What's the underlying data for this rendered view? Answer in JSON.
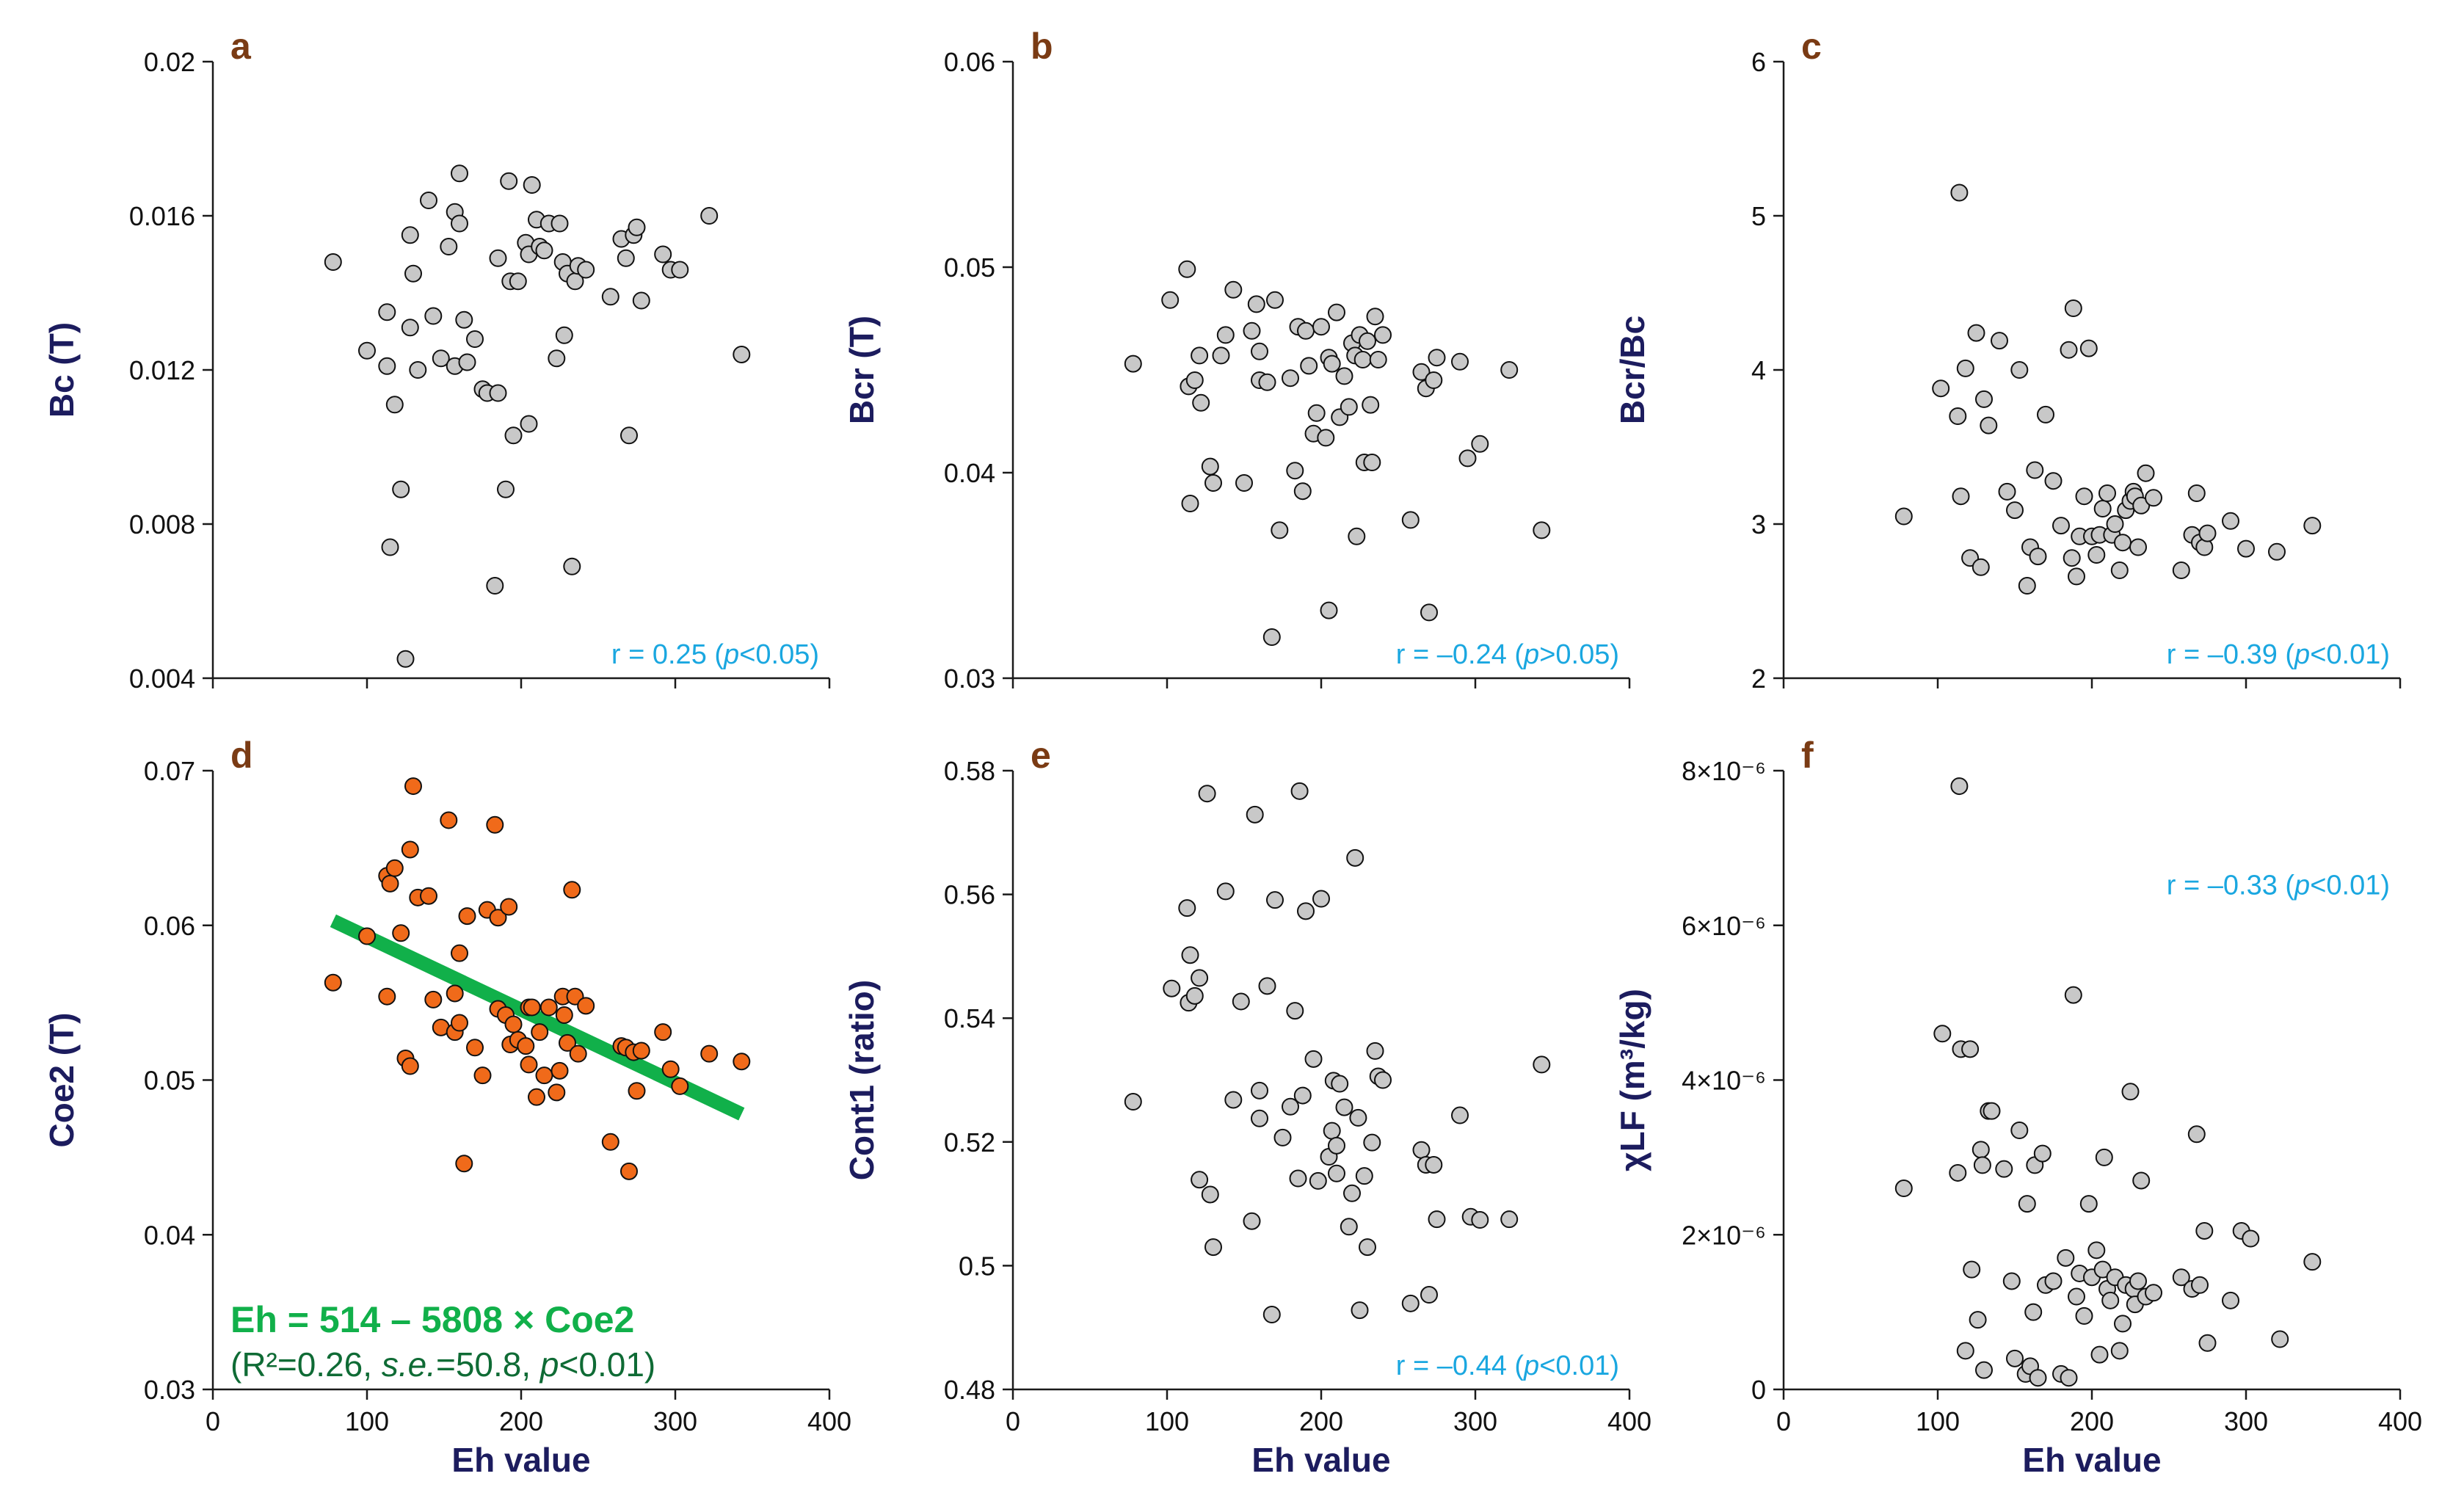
{
  "colors": {
    "axis": "#1a1a1a",
    "axis_label": "#1c1c5e",
    "panel_letter": "#7a3b14",
    "annotation": "#1aa7e0",
    "fit_line": "#11b04a",
    "gray_point": "#c8c8c8",
    "orange_point": "#f06a1a"
  },
  "chart_data": [
    {
      "type": "scatter",
      "panel": "a",
      "xlabel": "",
      "ylabel": "Bc (T)",
      "xlim": [
        0,
        400
      ],
      "ylim": [
        0.004,
        0.02
      ],
      "xticks": [
        0,
        100,
        200,
        300,
        400
      ],
      "xtick_labels": [
        "",
        "",
        "",
        "",
        ""
      ],
      "yticks": [
        0.004,
        0.008,
        0.012,
        0.016,
        0.02
      ],
      "ytick_labels": [
        "0.004",
        "0.008",
        "0.012",
        "0.016",
        "0.02"
      ],
      "annotation": "r = 0.25 (p<0.05)",
      "point_style": "gray",
      "x": [
        78,
        100,
        113,
        113,
        115,
        118,
        122,
        125,
        128,
        128,
        130,
        133,
        140,
        143,
        148,
        153,
        157,
        157,
        160,
        160,
        163,
        165,
        170,
        175,
        178,
        183,
        185,
        185,
        190,
        192,
        193,
        195,
        198,
        203,
        205,
        205,
        207,
        210,
        212,
        215,
        218,
        223,
        225,
        227,
        228,
        230,
        233,
        235,
        237,
        242,
        258,
        265,
        268,
        270,
        273,
        275,
        278,
        292,
        297,
        303,
        322,
        343
      ],
      "y": [
        0.0148,
        0.0125,
        0.0135,
        0.0121,
        0.0074,
        0.0111,
        0.0089,
        0.0045,
        0.0155,
        0.0131,
        0.0145,
        0.012,
        0.0164,
        0.0134,
        0.0123,
        0.0152,
        0.0121,
        0.0161,
        0.0171,
        0.0158,
        0.0133,
        0.0122,
        0.0128,
        0.0115,
        0.0114,
        0.0064,
        0.0149,
        0.0114,
        0.0089,
        0.0169,
        0.0143,
        0.0103,
        0.0143,
        0.0153,
        0.015,
        0.0106,
        0.0168,
        0.0159,
        0.0152,
        0.0151,
        0.0158,
        0.0123,
        0.0158,
        0.0148,
        0.0129,
        0.0145,
        0.0069,
        0.0143,
        0.0147,
        0.0146,
        0.0139,
        0.0154,
        0.0149,
        0.0103,
        0.0155,
        0.0157,
        0.0138,
        0.015,
        0.0146,
        0.0146,
        0.016,
        0.0124
      ]
    },
    {
      "type": "scatter",
      "panel": "b",
      "xlabel": "",
      "ylabel": "Bcr (T)",
      "xlim": [
        0,
        400
      ],
      "ylim": [
        0.03,
        0.06
      ],
      "xticks": [
        0,
        100,
        200,
        300,
        400
      ],
      "xtick_labels": [
        "",
        "",
        "",
        "",
        ""
      ],
      "yticks": [
        0.03,
        0.04,
        0.05,
        0.06
      ],
      "ytick_labels": [
        "0.03",
        "0.04",
        "0.05",
        "0.06"
      ],
      "annotation": "r = –0.24 (p>0.05)",
      "point_style": "gray",
      "x": [
        78,
        102,
        113,
        114,
        115,
        118,
        121,
        122,
        128,
        130,
        135,
        138,
        143,
        150,
        155,
        158,
        160,
        160,
        165,
        168,
        170,
        173,
        180,
        183,
        185,
        188,
        190,
        192,
        195,
        197,
        200,
        203,
        205,
        205,
        207,
        210,
        212,
        215,
        218,
        220,
        222,
        223,
        225,
        227,
        228,
        230,
        232,
        233,
        235,
        237,
        240,
        258,
        265,
        268,
        270,
        273,
        275,
        290,
        295,
        303,
        322,
        343
      ],
      "y": [
        0.0453,
        0.0484,
        0.0499,
        0.0442,
        0.0385,
        0.0445,
        0.0457,
        0.0434,
        0.0403,
        0.0395,
        0.0457,
        0.0467,
        0.0489,
        0.0395,
        0.0469,
        0.0482,
        0.0445,
        0.0459,
        0.0444,
        0.032,
        0.0484,
        0.0372,
        0.0446,
        0.0401,
        0.0471,
        0.0391,
        0.0469,
        0.0452,
        0.0419,
        0.0429,
        0.0471,
        0.0417,
        0.0456,
        0.0333,
        0.0453,
        0.0478,
        0.0427,
        0.0447,
        0.0432,
        0.0463,
        0.0457,
        0.0369,
        0.0467,
        0.0455,
        0.0405,
        0.0464,
        0.0433,
        0.0405,
        0.0476,
        0.0455,
        0.0467,
        0.0377,
        0.0449,
        0.0441,
        0.0332,
        0.0445,
        0.0456,
        0.0454,
        0.0407,
        0.0414,
        0.045,
        0.0372
      ]
    },
    {
      "type": "scatter",
      "panel": "c",
      "xlabel": "",
      "ylabel": "Bcr/Bc",
      "xlim": [
        0,
        400
      ],
      "ylim": [
        2,
        6
      ],
      "xticks": [
        0,
        100,
        200,
        300,
        400
      ],
      "xtick_labels": [
        "",
        "",
        "",
        "",
        ""
      ],
      "yticks": [
        2,
        3,
        4,
        5,
        6
      ],
      "ytick_labels": [
        "2",
        "3",
        "4",
        "5",
        "6"
      ],
      "annotation": "r = –0.39 (p<0.01)",
      "point_style": "gray",
      "x": [
        78,
        102,
        113,
        114,
        115,
        118,
        121,
        125,
        128,
        130,
        133,
        140,
        145,
        150,
        153,
        158,
        160,
        163,
        165,
        170,
        175,
        180,
        185,
        187,
        188,
        190,
        192,
        195,
        198,
        200,
        203,
        205,
        207,
        210,
        213,
        215,
        218,
        220,
        222,
        225,
        227,
        228,
        230,
        232,
        235,
        240,
        258,
        265,
        268,
        270,
        273,
        275,
        290,
        300,
        320,
        343
      ],
      "y": [
        3.05,
        3.88,
        3.7,
        5.15,
        3.18,
        4.01,
        2.78,
        4.24,
        2.72,
        3.81,
        3.64,
        4.19,
        3.21,
        3.09,
        4,
        2.6,
        2.85,
        3.35,
        2.79,
        3.71,
        3.28,
        2.99,
        4.13,
        2.78,
        4.4,
        2.66,
        2.92,
        3.18,
        4.14,
        2.92,
        2.8,
        2.93,
        3.1,
        3.2,
        2.93,
        3.0,
        2.7,
        2.88,
        3.09,
        3.15,
        3.21,
        3.18,
        2.85,
        3.12,
        3.33,
        3.17,
        2.7,
        2.93,
        3.2,
        2.88,
        2.85,
        2.94,
        3.02,
        2.84,
        2.82,
        2.99
      ]
    },
    {
      "type": "scatter",
      "panel": "d",
      "xlabel": "Eh value",
      "ylabel": "Coe2 (T)",
      "xlim": [
        0,
        400
      ],
      "ylim": [
        0.03,
        0.07
      ],
      "xticks": [
        0,
        100,
        200,
        300,
        400
      ],
      "xtick_labels": [
        "0",
        "100",
        "200",
        "300",
        "400"
      ],
      "yticks": [
        0.03,
        0.04,
        0.05,
        0.06,
        0.07
      ],
      "ytick_labels": [
        "0.03",
        "0.04",
        "0.05",
        "0.06",
        "0.07"
      ],
      "annotation": "",
      "point_style": "orange",
      "fit_line": {
        "x": [
          78,
          343
        ],
        "y": [
          0.0603,
          0.0478
        ]
      },
      "equation": "Eh = 514 – 5808 × Coe2",
      "stats": "(R²=0.26, s.e.=50.8, p<0.01)",
      "x": [
        78,
        100,
        113,
        113,
        115,
        118,
        122,
        125,
        128,
        128,
        130,
        133,
        140,
        143,
        148,
        153,
        157,
        157,
        160,
        160,
        163,
        165,
        170,
        175,
        178,
        183,
        185,
        185,
        190,
        192,
        193,
        195,
        198,
        203,
        205,
        205,
        207,
        210,
        212,
        215,
        218,
        223,
        225,
        227,
        228,
        230,
        233,
        235,
        237,
        242,
        258,
        265,
        268,
        270,
        273,
        275,
        278,
        292,
        297,
        303,
        322,
        343
      ],
      "y": [
        0.0563,
        0.0593,
        0.0632,
        0.0554,
        0.0627,
        0.0637,
        0.0595,
        0.0514,
        0.0649,
        0.0509,
        0.069,
        0.0618,
        0.0619,
        0.0552,
        0.0534,
        0.0668,
        0.0531,
        0.0556,
        0.0582,
        0.0537,
        0.0446,
        0.0606,
        0.0521,
        0.0503,
        0.061,
        0.0665,
        0.0605,
        0.0546,
        0.0542,
        0.0612,
        0.0523,
        0.0536,
        0.0526,
        0.0522,
        0.051,
        0.0547,
        0.0547,
        0.0489,
        0.0531,
        0.0503,
        0.0547,
        0.0492,
        0.0506,
        0.0554,
        0.0542,
        0.0524,
        0.0623,
        0.0554,
        0.0517,
        0.0548,
        0.046,
        0.0522,
        0.0521,
        0.0441,
        0.0518,
        0.0493,
        0.0519,
        0.0531,
        0.0507,
        0.0496,
        0.0517,
        0.0512
      ]
    },
    {
      "type": "scatter",
      "panel": "e",
      "xlabel": "Eh value",
      "ylabel": "Cont1 (ratio)",
      "xlim": [
        0,
        400
      ],
      "ylim": [
        0.48,
        0.58
      ],
      "xticks": [
        0,
        100,
        200,
        300,
        400
      ],
      "xtick_labels": [
        "0",
        "100",
        "200",
        "300",
        "400"
      ],
      "yticks": [
        0.48,
        0.5,
        0.52,
        0.54,
        0.56,
        0.58
      ],
      "ytick_labels": [
        "0.48",
        "0.5",
        "0.52",
        "0.54",
        "0.56",
        "0.58"
      ],
      "annotation": "r = –0.44 (p<0.01)",
      "point_style": "gray",
      "x": [
        78,
        103,
        113,
        114,
        115,
        118,
        121,
        121,
        126,
        128,
        130,
        138,
        143,
        148,
        155,
        157,
        160,
        160,
        165,
        168,
        170,
        175,
        180,
        183,
        185,
        186,
        188,
        190,
        195,
        198,
        200,
        205,
        207,
        208,
        210,
        210,
        212,
        215,
        218,
        220,
        222,
        224,
        225,
        228,
        230,
        233,
        235,
        237,
        240,
        258,
        265,
        268,
        270,
        273,
        275,
        290,
        297,
        303,
        322,
        343
      ],
      "y": [
        0.5265,
        0.5448,
        0.5578,
        0.5425,
        0.5502,
        0.5436,
        0.5465,
        0.5139,
        0.5763,
        0.5115,
        0.503,
        0.5605,
        0.5268,
        0.5427,
        0.5072,
        0.5729,
        0.5283,
        0.5238,
        0.5452,
        0.4921,
        0.5591,
        0.5207,
        0.5257,
        0.5412,
        0.5141,
        0.5767,
        0.5275,
        0.5573,
        0.5334,
        0.5137,
        0.5593,
        0.5176,
        0.5218,
        0.5299,
        0.5194,
        0.5149,
        0.5294,
        0.5256,
        0.5063,
        0.5117,
        0.5659,
        0.5239,
        0.4928,
        0.5145,
        0.503,
        0.5199,
        0.5347,
        0.5306,
        0.53,
        0.4939,
        0.5187,
        0.5163,
        0.4953,
        0.5163,
        0.5075,
        0.5243,
        0.5079,
        0.5074,
        0.5075,
        0.5325
      ]
    },
    {
      "type": "scatter",
      "panel": "f",
      "xlabel": "Eh value",
      "ylabel": "χLF (m³/kg)",
      "xlim": [
        0,
        400
      ],
      "ylim": [
        0,
        8e-06
      ],
      "xticks": [
        0,
        100,
        200,
        300,
        400
      ],
      "xtick_labels": [
        "0",
        "100",
        "200",
        "300",
        "400"
      ],
      "yticks": [
        0,
        2e-06,
        4e-06,
        6e-06,
        8e-06
      ],
      "ytick_labels": [
        "0",
        "2×10⁻⁶",
        "4×10⁻⁶",
        "6×10⁻⁶",
        "8×10⁻⁶"
      ],
      "annotation": "r = –0.33 (p<0.01)",
      "point_style": "gray",
      "x": [
        78,
        103,
        113,
        114,
        115,
        118,
        121,
        122,
        126,
        128,
        129,
        130,
        133,
        135,
        143,
        148,
        150,
        153,
        157,
        158,
        160,
        162,
        163,
        165,
        168,
        170,
        175,
        180,
        183,
        185,
        188,
        190,
        192,
        195,
        198,
        200,
        203,
        205,
        207,
        208,
        210,
        212,
        215,
        218,
        220,
        222,
        225,
        227,
        228,
        230,
        232,
        235,
        240,
        258,
        265,
        268,
        270,
        273,
        275,
        290,
        297,
        303,
        322,
        343
      ],
      "y": [
        2.6e-06,
        4.6e-06,
        2.8e-06,
        7.8e-06,
        4.4e-06,
        5e-07,
        4.4e-06,
        1.55e-06,
        9e-07,
        3.1e-06,
        2.9e-06,
        2.5e-07,
        3.6e-06,
        3.6e-06,
        2.85e-06,
        1.4e-06,
        4e-07,
        3.35e-06,
        2e-07,
        2.4e-06,
        3e-07,
        1e-06,
        2.9e-06,
        1.5e-07,
        3.05e-06,
        1.35e-06,
        1.4e-06,
        2e-07,
        1.7e-06,
        1.5e-07,
        5.1e-06,
        1.2e-06,
        1.5e-06,
        9.5e-07,
        2.4e-06,
        1.45e-06,
        1.8e-06,
        4.5e-07,
        1.55e-06,
        3e-06,
        1.3e-06,
        1.15e-06,
        1.45e-06,
        5e-07,
        8.5e-07,
        1.35e-06,
        3.85e-06,
        1.3e-06,
        1.1e-06,
        1.4e-06,
        2.7e-06,
        1.2e-06,
        1.25e-06,
        1.45e-06,
        1.3e-06,
        3.3e-06,
        1.35e-06,
        2.05e-06,
        6e-07,
        1.15e-06,
        2.05e-06,
        1.95e-06,
        6.5e-07,
        1.65e-06
      ]
    }
  ]
}
